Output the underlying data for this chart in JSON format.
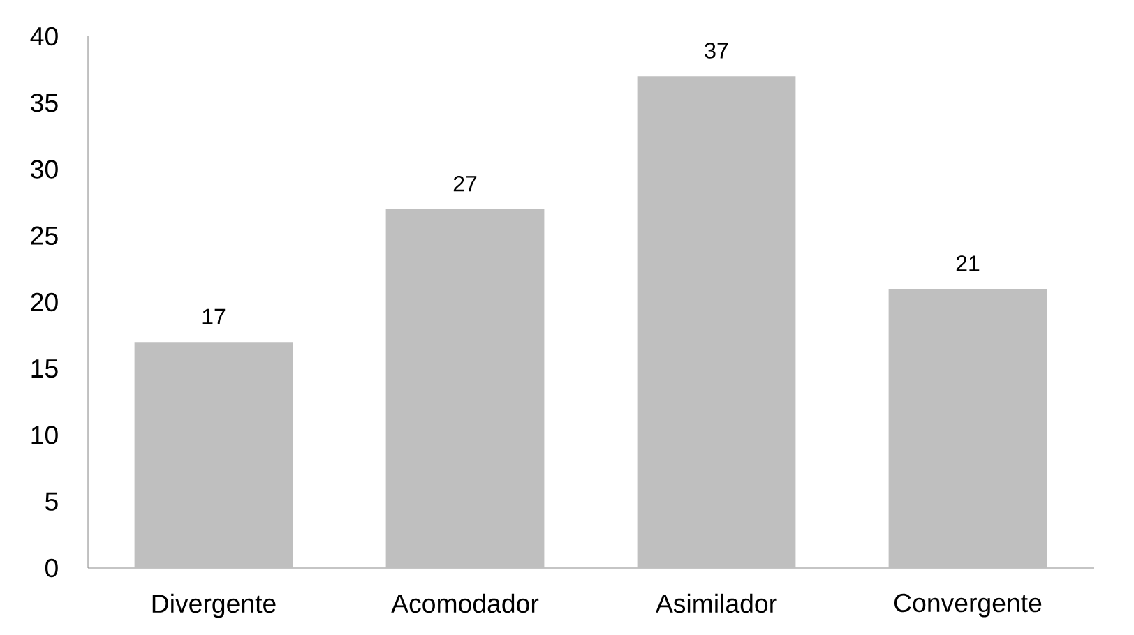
{
  "chart_data": {
    "type": "bar",
    "categories": [
      "Divergente",
      "Acomodador",
      "Asimilador",
      "Convergente"
    ],
    "values": [
      17,
      27,
      37,
      21
    ],
    "color": "#bfbfbf",
    "ylim": [
      0,
      40
    ],
    "yticks": [
      0,
      5,
      10,
      15,
      20,
      25,
      30,
      35,
      40
    ],
    "data_labels": true
  }
}
